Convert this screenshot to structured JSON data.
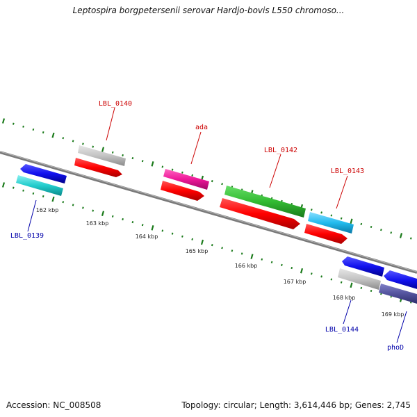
{
  "title": "Leptospira borgpetersenii serovar Hardjo-bovis L550 chromoso...",
  "footer": {
    "accession": "Accession: NC_008508",
    "topology": "Topology: circular; Length: 3,614,446 bp; Genes: 2,745"
  },
  "colors": {
    "backbone": "#888888",
    "tick": "#1a7a1a",
    "label_forward": "#cc0000",
    "label_reverse": "#0000aa"
  },
  "scale_labels": [
    "162 kbp",
    "163 kbp",
    "164 kbp",
    "165 kbp",
    "166 kbp",
    "167 kbp",
    "168 kbp",
    "169 kbp"
  ],
  "gene_labels": [
    {
      "id": "LBL_0139",
      "strand": "reverse"
    },
    {
      "id": "LBL_0140",
      "strand": "forward"
    },
    {
      "id": "ada",
      "strand": "forward"
    },
    {
      "id": "LBL_0142",
      "strand": "forward"
    },
    {
      "id": "LBL_0143",
      "strand": "forward"
    },
    {
      "id": "LBL_0144",
      "strand": "reverse"
    },
    {
      "id": "phoD",
      "strand": "reverse"
    }
  ]
}
